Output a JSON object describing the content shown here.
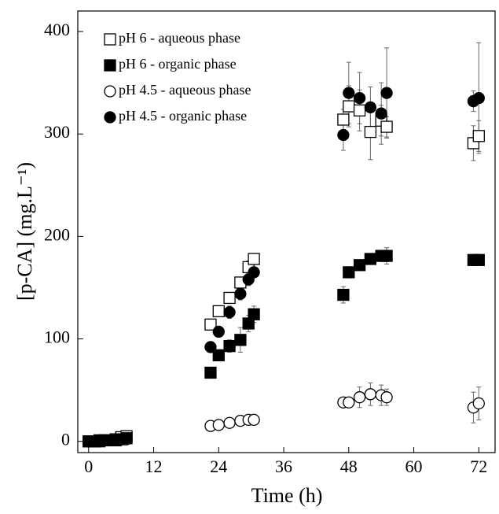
{
  "chart_data": {
    "type": "scatter",
    "xlabel": "Time (h)",
    "ylabel": "[p-CA] (mg.L⁻¹)",
    "xlim": [
      -2,
      75
    ],
    "ylim": [
      -11,
      420
    ],
    "xticks": [
      0,
      12,
      24,
      36,
      48,
      60,
      72
    ],
    "yticks": [
      0,
      100,
      200,
      300,
      400
    ],
    "legend": "upper left",
    "series": [
      {
        "name": "pH 6 - aqueous phase",
        "marker": "square",
        "filled": false,
        "color": "#000000",
        "x": [
          0,
          1,
          2,
          3,
          5,
          6,
          7,
          22.5,
          24,
          26,
          28,
          29.5,
          30.5,
          47,
          48,
          50,
          52,
          54,
          55,
          71,
          72
        ],
        "values": [
          0,
          0,
          1,
          1,
          2,
          4,
          5,
          114,
          127,
          140,
          155,
          170,
          178,
          314,
          327,
          323,
          302,
          313,
          307,
          291,
          298
        ],
        "errors": [
          0,
          0,
          0,
          0,
          1,
          2,
          2,
          3,
          3,
          4,
          5,
          6,
          4,
          10,
          20,
          20,
          27,
          15,
          10,
          17,
          15
        ]
      },
      {
        "name": "pH 6 - organic phase",
        "marker": "square",
        "filled": true,
        "color": "#000000",
        "x": [
          0,
          1,
          2,
          3,
          5,
          6,
          7,
          22.5,
          24,
          26,
          28,
          29.5,
          30.5,
          47,
          48,
          50,
          52,
          54,
          55,
          71,
          72
        ],
        "values": [
          0,
          0,
          0,
          1,
          1,
          2,
          3,
          67,
          84,
          93,
          99,
          115,
          124,
          143,
          165,
          172,
          178,
          181,
          181,
          177,
          177
        ],
        "errors": [
          0,
          0,
          0,
          0,
          1,
          1,
          1,
          3,
          4,
          6,
          12,
          8,
          8,
          8,
          5,
          5,
          5,
          5,
          8,
          3,
          3
        ]
      },
      {
        "name": "pH 4.5 - aqueous phase",
        "marker": "circle",
        "filled": false,
        "color": "#000000",
        "x": [
          0,
          1,
          2,
          3,
          5,
          6,
          7,
          22.5,
          24,
          26,
          28,
          29.5,
          30.5,
          47,
          48,
          50,
          52,
          54,
          55,
          71,
          72
        ],
        "values": [
          0,
          0,
          0,
          1,
          1,
          2,
          2,
          15,
          16,
          18,
          20,
          21,
          21,
          38,
          38,
          43,
          46,
          45,
          43,
          33,
          37
        ],
        "errors": [
          0,
          0,
          0,
          0,
          0,
          1,
          1,
          1,
          1,
          1,
          2,
          2,
          2,
          3,
          3,
          10,
          11,
          10,
          8,
          15,
          16
        ]
      },
      {
        "name": "pH 4.5 - organic phase",
        "marker": "circle",
        "filled": true,
        "color": "#000000",
        "x": [
          0,
          1,
          2,
          3,
          5,
          6,
          7,
          22.5,
          24,
          26,
          28,
          29.5,
          30.5,
          47,
          48,
          50,
          52,
          54,
          55,
          71,
          72
        ],
        "values": [
          0,
          0,
          0,
          1,
          1,
          2,
          3,
          92,
          107,
          126,
          144,
          158,
          165,
          299,
          340,
          335,
          326,
          320,
          340,
          332,
          335
        ],
        "errors": [
          0,
          0,
          0,
          0,
          1,
          1,
          1,
          4,
          5,
          6,
          6,
          6,
          5,
          15,
          30,
          25,
          20,
          30,
          44,
          10,
          54
        ]
      }
    ]
  }
}
